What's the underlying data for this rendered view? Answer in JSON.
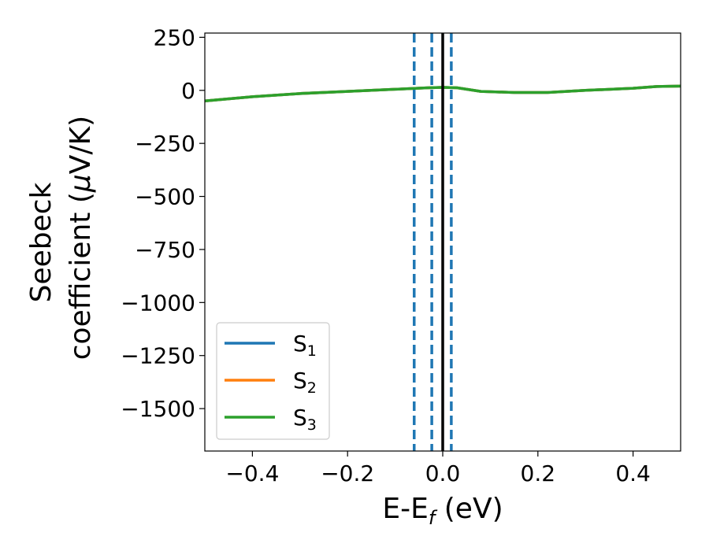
{
  "chart_data": {
    "type": "line",
    "xlabel_main": "E-E",
    "xlabel_sub": "f",
    "xlabel_tail": " (eV)",
    "ylabel_line1": "Seebeck",
    "ylabel_line2_prefix": "coefficient  (",
    "ylabel_mu": "μ",
    "ylabel_line2_suffix": "V/K)",
    "xlim": [
      -0.5,
      0.5
    ],
    "ylim": [
      -1700,
      270
    ],
    "xticks": [
      -0.4,
      -0.2,
      0.0,
      0.2,
      0.4
    ],
    "xtick_labels": [
      "−0.4",
      "−0.2",
      "0.0",
      "0.2",
      "0.4"
    ],
    "yticks": [
      250,
      0,
      -250,
      -500,
      -750,
      -1000,
      -1250,
      -1500
    ],
    "ytick_labels": [
      "250",
      "0",
      "−250",
      "−500",
      "−750",
      "−1000",
      "−1250",
      "−1500"
    ],
    "legend_position": "lower-left",
    "series": [
      {
        "name": "S",
        "sub": "1",
        "color": "#1f77b4",
        "x": [
          -0.5,
          -0.4,
          -0.3,
          -0.2,
          -0.1,
          -0.03,
          0.0,
          0.03,
          0.08,
          0.15,
          0.22,
          0.3,
          0.4,
          0.45,
          0.5
        ],
        "y": [
          -50,
          -30,
          -15,
          -5,
          5,
          12,
          14,
          12,
          -5,
          -10,
          -10,
          0,
          10,
          18,
          20
        ]
      },
      {
        "name": "S",
        "sub": "2",
        "color": "#ff7f0e",
        "x": [
          -0.5,
          -0.4,
          -0.3,
          -0.2,
          -0.1,
          -0.03,
          0.0,
          0.03,
          0.08,
          0.15,
          0.22,
          0.3,
          0.4,
          0.45,
          0.5
        ],
        "y": [
          -50,
          -30,
          -15,
          -5,
          5,
          12,
          14,
          12,
          -5,
          -10,
          -10,
          0,
          10,
          18,
          20
        ]
      },
      {
        "name": "S",
        "sub": "3",
        "color": "#2ca02c",
        "x": [
          -0.5,
          -0.4,
          -0.3,
          -0.2,
          -0.1,
          -0.03,
          0.0,
          0.03,
          0.08,
          0.15,
          0.22,
          0.3,
          0.4,
          0.45,
          0.5
        ],
        "y": [
          -50,
          -30,
          -15,
          -5,
          5,
          12,
          14,
          12,
          -5,
          -10,
          -10,
          0,
          10,
          18,
          20
        ]
      }
    ],
    "vlines": [
      {
        "x": -0.06,
        "style": "dashed",
        "color": "#1f77b4"
      },
      {
        "x": -0.023,
        "style": "dashed",
        "color": "#1f77b4"
      },
      {
        "x": 0.0,
        "style": "solid",
        "color": "#000000"
      },
      {
        "x": 0.018,
        "style": "dashed",
        "color": "#1f77b4"
      }
    ]
  }
}
